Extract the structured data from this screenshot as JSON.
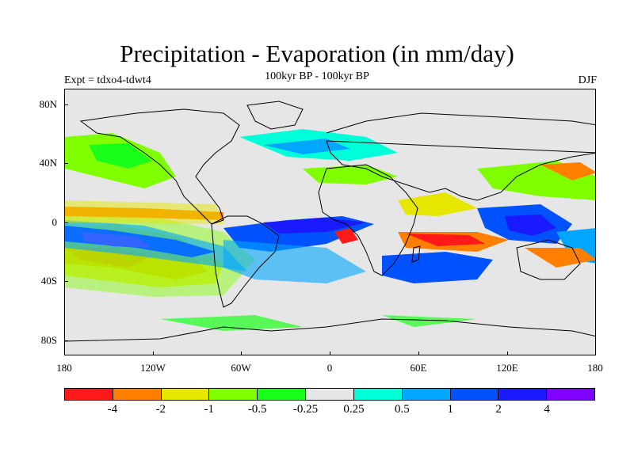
{
  "title": "Precipitation - Evaporation (in mm/day)",
  "subtitle": "100kyr BP - 100kyr BP",
  "experiment": "Expt = tdxo4-tdwt4",
  "season": "DJF",
  "map": {
    "projection": "cylindrical-equidistant",
    "background_color": "#e6e6e6",
    "coastline_color": "#000000",
    "lat_labels": [
      "80N",
      "40N",
      "0",
      "40S",
      "80S"
    ],
    "lon_labels": [
      "180",
      "120W",
      "60W",
      "0",
      "60E",
      "120E",
      "180"
    ]
  },
  "colorbar": {
    "colors": [
      "#ff1a1a",
      "#ff8000",
      "#e6e600",
      "#80ff00",
      "#1aff1a",
      "#e6e6e6",
      "#00ffd9",
      "#00a6ff",
      "#0052ff",
      "#1a1aff",
      "#8000ff"
    ],
    "labels": [
      "-4",
      "-2",
      "-1",
      "-0.5",
      "-0.25",
      "0.25",
      "0.5",
      "1",
      "2",
      "4"
    ]
  }
}
